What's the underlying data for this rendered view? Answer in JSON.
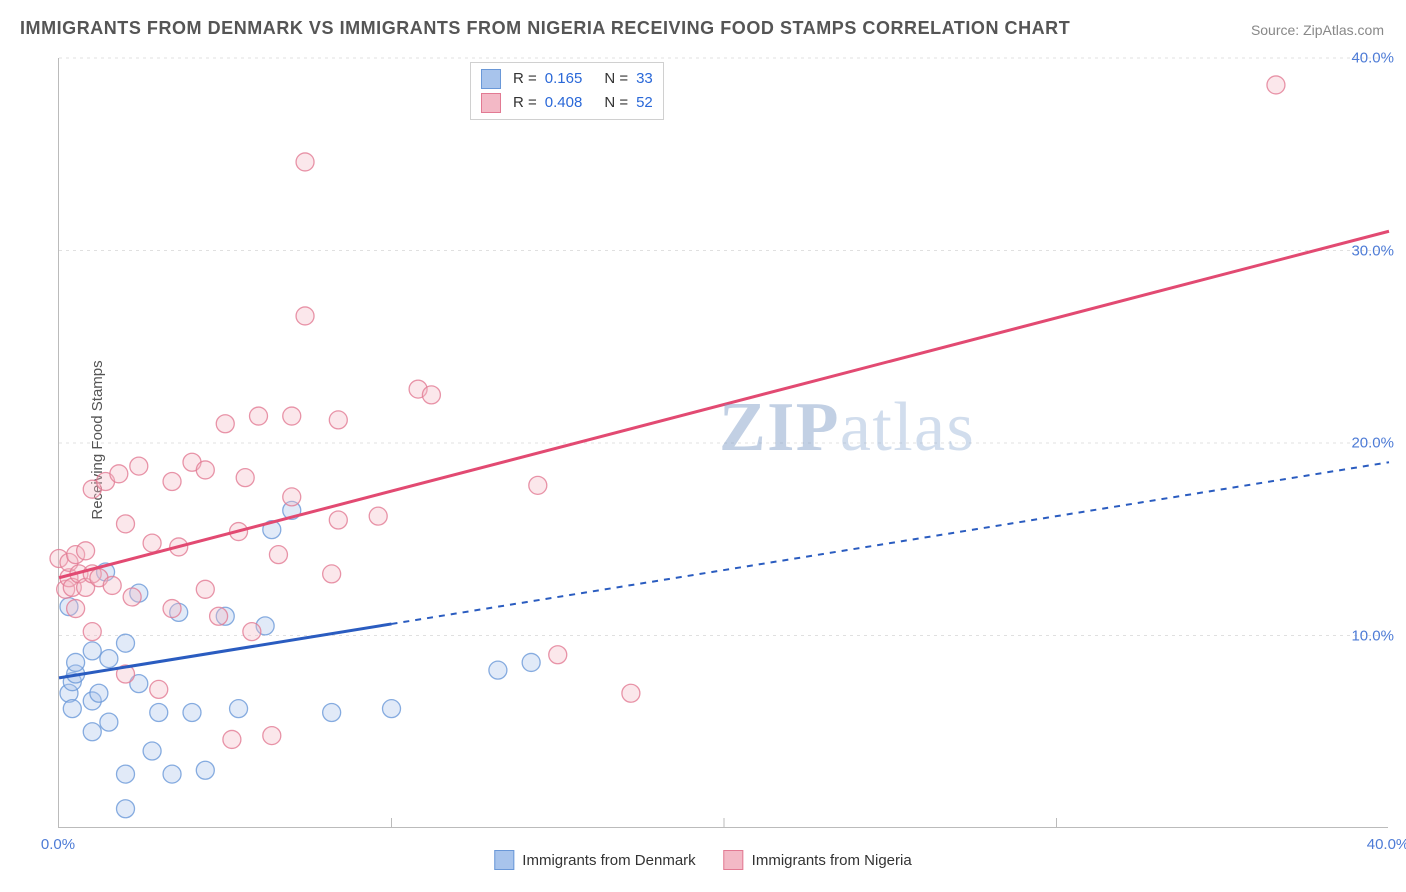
{
  "title": "IMMIGRANTS FROM DENMARK VS IMMIGRANTS FROM NIGERIA RECEIVING FOOD STAMPS CORRELATION CHART",
  "source_prefix": "Source: ",
  "source_name": "ZipAtlas.com",
  "ylabel": "Receiving Food Stamps",
  "watermark": "ZIPatlas",
  "chart": {
    "type": "scatter-with-regression",
    "xlim": [
      0,
      40
    ],
    "ylim": [
      0,
      40
    ],
    "xtick_labels": [
      "0.0%",
      "40.0%"
    ],
    "xtick_positions": [
      0,
      40
    ],
    "xtick_minor": [
      10,
      20,
      30
    ],
    "ytick_labels": [
      "10.0%",
      "20.0%",
      "30.0%",
      "40.0%"
    ],
    "ytick_positions": [
      10,
      20,
      30,
      40
    ],
    "grid_color": "#e0e0e0",
    "axis_color": "#bbbbbb",
    "background_color": "#ffffff",
    "tick_label_color": "#4d7bd6",
    "tick_fontsize": 15,
    "ylabel_fontsize": 15,
    "title_fontsize": 18,
    "marker_radius": 9,
    "marker_fill_opacity": 0.35,
    "marker_stroke_opacity": 0.8,
    "line_width_solid": 3,
    "line_width_dashed": 2,
    "dash_pattern": "6,6"
  },
  "series": [
    {
      "name": "Immigrants from Denmark",
      "color_fill": "#a8c4ec",
      "color_stroke": "#6a98d8",
      "line_color": "#2a5cc0",
      "R": "0.165",
      "N": "33",
      "regression": {
        "x1": 0,
        "y1": 7.8,
        "x2": 40,
        "y2": 19.0,
        "solid_until_x": 10
      },
      "points": [
        [
          0.3,
          11.5
        ],
        [
          0.3,
          7.0
        ],
        [
          0.4,
          7.6
        ],
        [
          0.4,
          6.2
        ],
        [
          0.5,
          8.0
        ],
        [
          0.5,
          8.6
        ],
        [
          1.0,
          9.2
        ],
        [
          1.0,
          5.0
        ],
        [
          1.0,
          6.6
        ],
        [
          1.2,
          7.0
        ],
        [
          1.4,
          13.3
        ],
        [
          1.5,
          8.8
        ],
        [
          1.5,
          5.5
        ],
        [
          2.0,
          9.6
        ],
        [
          2.0,
          2.8
        ],
        [
          2.0,
          1.0
        ],
        [
          2.4,
          12.2
        ],
        [
          2.4,
          7.5
        ],
        [
          2.8,
          4.0
        ],
        [
          3.0,
          6.0
        ],
        [
          3.4,
          2.8
        ],
        [
          3.6,
          11.2
        ],
        [
          4.0,
          6.0
        ],
        [
          4.4,
          3.0
        ],
        [
          5.0,
          11.0
        ],
        [
          5.4,
          6.2
        ],
        [
          6.2,
          10.5
        ],
        [
          6.4,
          15.5
        ],
        [
          7.0,
          16.5
        ],
        [
          8.2,
          6.0
        ],
        [
          10.0,
          6.2
        ],
        [
          13.2,
          8.2
        ],
        [
          14.2,
          8.6
        ]
      ]
    },
    {
      "name": "Immigrants from Nigeria",
      "color_fill": "#f3b9c6",
      "color_stroke": "#e27a93",
      "line_color": "#e24a72",
      "R": "0.408",
      "N": "52",
      "regression": {
        "x1": 0,
        "y1": 13.0,
        "x2": 40,
        "y2": 31.0,
        "solid_until_x": 40
      },
      "points": [
        [
          0.0,
          14.0
        ],
        [
          0.2,
          12.4
        ],
        [
          0.3,
          13.0
        ],
        [
          0.3,
          13.8
        ],
        [
          0.4,
          12.5
        ],
        [
          0.5,
          11.4
        ],
        [
          0.5,
          14.2
        ],
        [
          0.6,
          13.2
        ],
        [
          0.8,
          12.5
        ],
        [
          0.8,
          14.4
        ],
        [
          1.0,
          13.2
        ],
        [
          1.0,
          10.2
        ],
        [
          1.0,
          17.6
        ],
        [
          1.2,
          13.0
        ],
        [
          1.4,
          18.0
        ],
        [
          1.6,
          12.6
        ],
        [
          1.8,
          18.4
        ],
        [
          2.0,
          8.0
        ],
        [
          2.0,
          15.8
        ],
        [
          2.2,
          12.0
        ],
        [
          2.4,
          18.8
        ],
        [
          2.8,
          14.8
        ],
        [
          3.0,
          7.2
        ],
        [
          3.4,
          11.4
        ],
        [
          3.4,
          18.0
        ],
        [
          3.6,
          14.6
        ],
        [
          4.0,
          19.0
        ],
        [
          4.4,
          18.6
        ],
        [
          4.4,
          12.4
        ],
        [
          4.8,
          11.0
        ],
        [
          5.0,
          21.0
        ],
        [
          5.2,
          4.6
        ],
        [
          5.4,
          15.4
        ],
        [
          5.6,
          18.2
        ],
        [
          5.8,
          10.2
        ],
        [
          6.0,
          21.4
        ],
        [
          6.4,
          4.8
        ],
        [
          6.6,
          14.2
        ],
        [
          7.0,
          17.2
        ],
        [
          7.0,
          21.4
        ],
        [
          7.4,
          26.6
        ],
        [
          7.4,
          34.6
        ],
        [
          8.2,
          13.2
        ],
        [
          8.4,
          16.0
        ],
        [
          8.4,
          21.2
        ],
        [
          9.6,
          16.2
        ],
        [
          10.8,
          22.8
        ],
        [
          11.2,
          22.5
        ],
        [
          14.4,
          17.8
        ],
        [
          15.0,
          9.0
        ],
        [
          17.2,
          7.0
        ],
        [
          36.6,
          38.6
        ]
      ]
    }
  ],
  "legend_top": {
    "r_label": "R =",
    "n_label": "N ="
  },
  "legend_bottom_labels": [
    "Immigrants from Denmark",
    "Immigrants from Nigeria"
  ]
}
